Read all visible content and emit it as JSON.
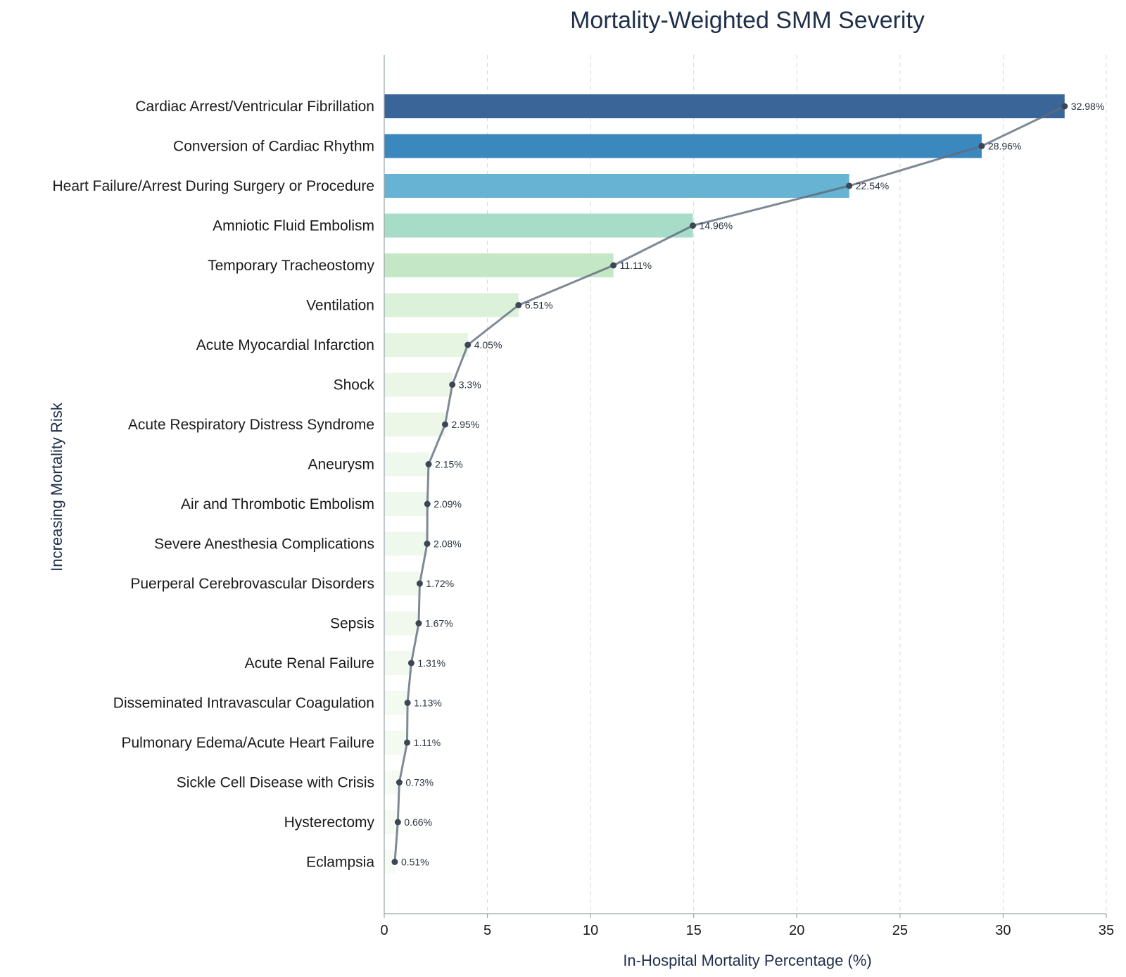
{
  "chart_data": {
    "type": "bar",
    "orientation": "horizontal",
    "title": "Mortality-Weighted SMM Severity",
    "xlabel": "In-Hospital Mortality Percentage (%)",
    "ylabel": "Increasing Mortality Risk",
    "xlim": [
      0,
      35
    ],
    "xticks": [
      0,
      5,
      10,
      15,
      20,
      25,
      30,
      35
    ],
    "grid": "x",
    "categories": [
      "Cardiac Arrest/Ventricular Fibrillation",
      "Conversion of Cardiac Rhythm",
      "Heart Failure/Arrest During Surgery or Procedure",
      "Amniotic Fluid Embolism",
      "Temporary Tracheostomy",
      "Ventilation",
      "Acute Myocardial Infarction",
      "Shock",
      "Acute Respiratory Distress Syndrome",
      "Aneurysm",
      "Air and Thrombotic Embolism",
      "Severe Anesthesia Complications",
      "Puerperal Cerebrovascular Disorders",
      "Sepsis",
      "Acute Renal Failure",
      "Disseminated Intravascular Coagulation",
      "Pulmonary Edema/Acute Heart Failure",
      "Sickle Cell Disease with Crisis",
      "Hysterectomy",
      "Eclampsia"
    ],
    "values": [
      32.98,
      28.96,
      22.54,
      14.96,
      11.11,
      6.51,
      4.05,
      3.3,
      2.95,
      2.15,
      2.09,
      2.08,
      1.72,
      1.67,
      1.31,
      1.13,
      1.11,
      0.73,
      0.66,
      0.51
    ],
    "value_labels": [
      "32.98%",
      "28.96%",
      "22.54%",
      "14.96%",
      "11.11%",
      "6.51%",
      "4.05%",
      "3.3%",
      "2.95%",
      "2.15%",
      "2.09%",
      "2.08%",
      "1.72%",
      "1.67%",
      "1.31%",
      "1.13%",
      "1.11%",
      "0.73%",
      "0.66%",
      "0.51%"
    ],
    "colors": [
      "#3a6599",
      "#3b88be",
      "#66b3d3",
      "#a6dcc8",
      "#c4e8c6",
      "#dcf1d9",
      "#e6f4e2",
      "#ebf6e7",
      "#ecf7e8",
      "#eff8ec",
      "#eff8ec",
      "#eff8ec",
      "#f1f9ee",
      "#f1f9ee",
      "#f2faef",
      "#f3faf0",
      "#f3faf0",
      "#f5fbf2",
      "#f5fbf2",
      "#f6fbf3"
    ],
    "trend_line_color": "#5e6b7c"
  }
}
